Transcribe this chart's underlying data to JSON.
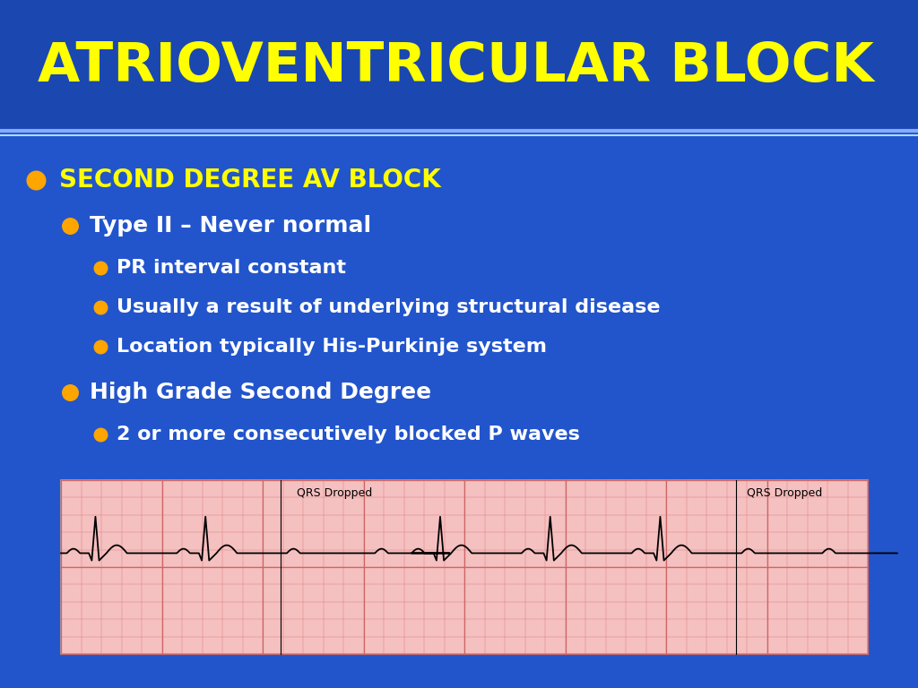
{
  "title": "ATRIOVENTRICULAR BLOCK",
  "title_color": "#FFFF00",
  "title_fontsize": 44,
  "bg_color": "#2255CC",
  "bg_title": "#1a48b0",
  "bg_content": "#2255CC",
  "separator_color1": "#aaccff",
  "separator_color2": "#6699ff",
  "bullet1_text": "SECOND DEGREE AV BLOCK",
  "bullet1_color": "#FFFF00",
  "bullet1_dot_color": "#FFA500",
  "bullet2_text": "Type II – Never normal",
  "bullet2_color": "#FFFFFF",
  "bullet2_dot_color": "#FFA500",
  "sub_bullets": [
    "PR interval constant",
    "Usually a result of underlying structural disease",
    "Location typically His-Purkinje system"
  ],
  "sub_bullet_color": "#FFFFFF",
  "sub_bullet_dot_color": "#FFA500",
  "bullet3_text": "High Grade Second Degree",
  "bullet3_color": "#FFFFFF",
  "bullet3_dot_color": "#FFA500",
  "bullet4_text": "2 or more consecutively blocked P waves",
  "bullet4_color": "#FFFFFF",
  "bullet4_dot_color": "#FFA500",
  "ecg_label": "QRS Dropped",
  "ecg_bg": "#f5c0c0",
  "ecg_grid_minor_color": "#e08080",
  "ecg_grid_major_color": "#cc6666",
  "ecg_line_color": "#000000"
}
